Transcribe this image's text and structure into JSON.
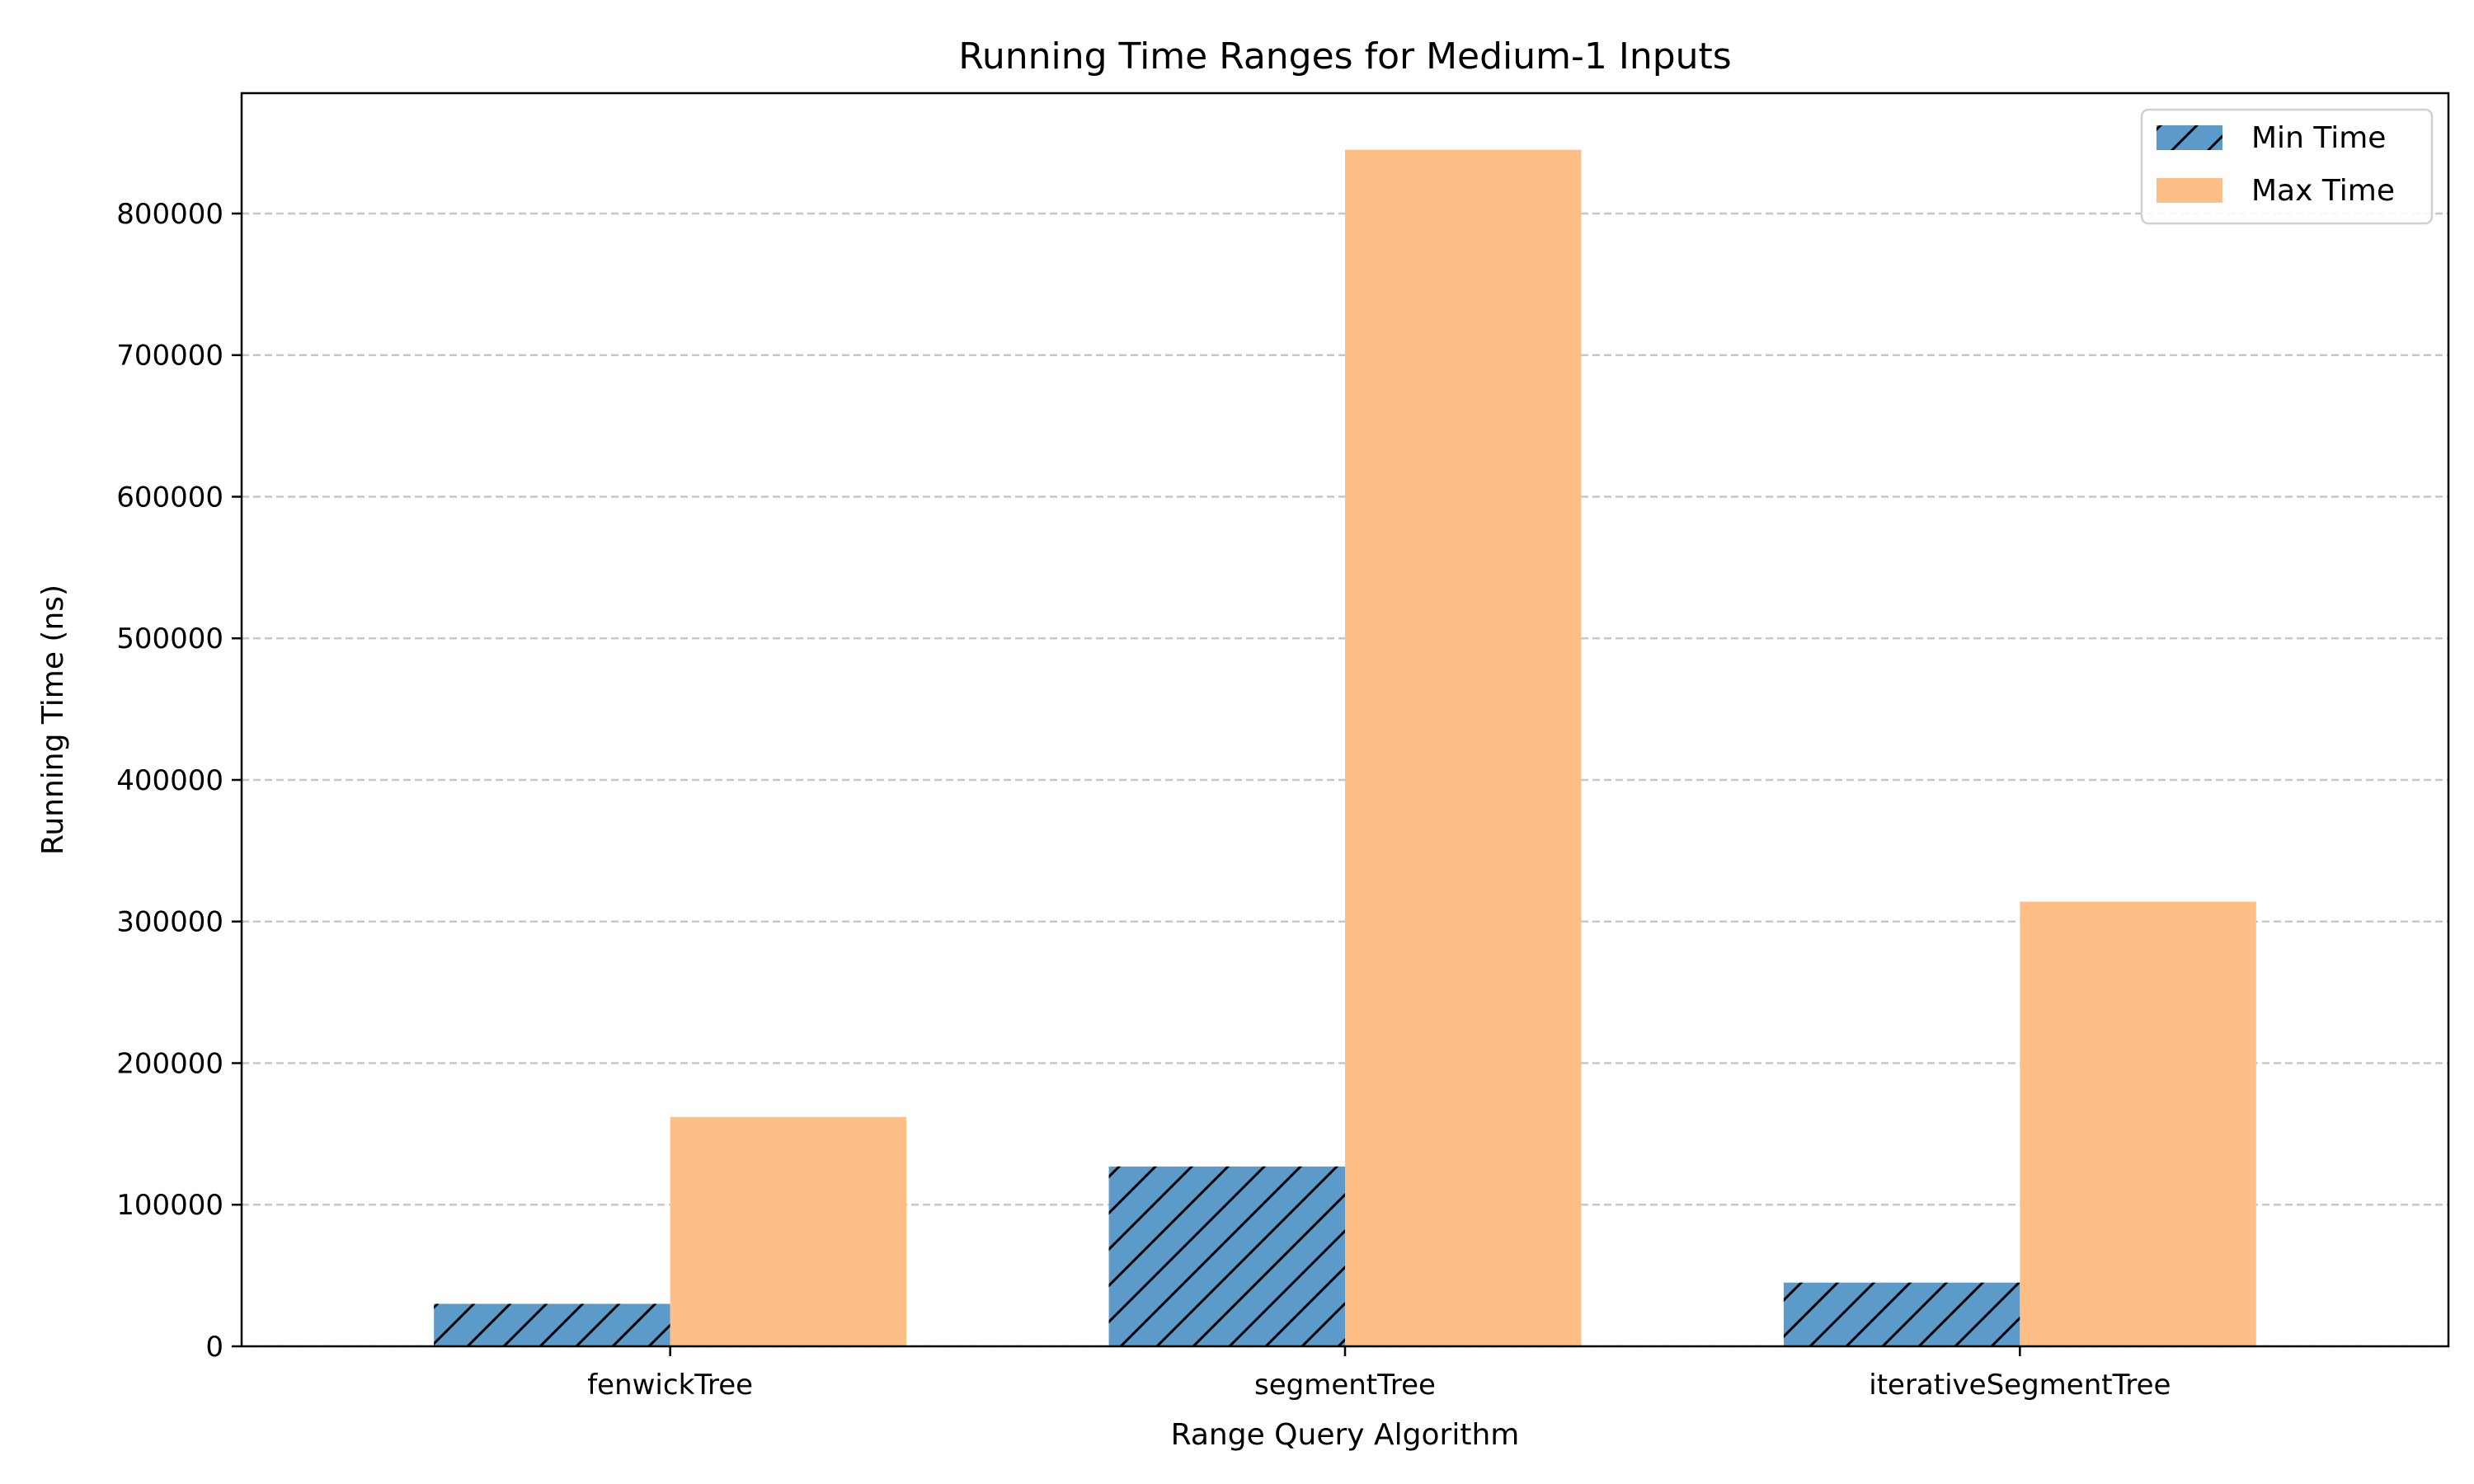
{
  "chart_data": {
    "type": "bar",
    "title": "Running Time Ranges for Medium-1 Inputs",
    "xlabel": "Range Query Algorithm",
    "ylabel": "Running Time (ns)",
    "categories": [
      "fenwickTree",
      "segmentTree",
      "iterativeSegmentTree"
    ],
    "series": [
      {
        "name": "Min Time",
        "values": [
          30000,
          127000,
          45000
        ],
        "color": "#5b9ac9",
        "hatch": "diagonal"
      },
      {
        "name": "Max Time",
        "values": [
          162000,
          845000,
          314000
        ],
        "color": "#ffbe86",
        "hatch": "none"
      }
    ],
    "ylim": [
      0,
      885000
    ],
    "yticks": [
      0,
      100000,
      200000,
      300000,
      400000,
      500000,
      600000,
      700000,
      800000
    ],
    "grid": "y-dashed",
    "legend_position": "top-right"
  }
}
